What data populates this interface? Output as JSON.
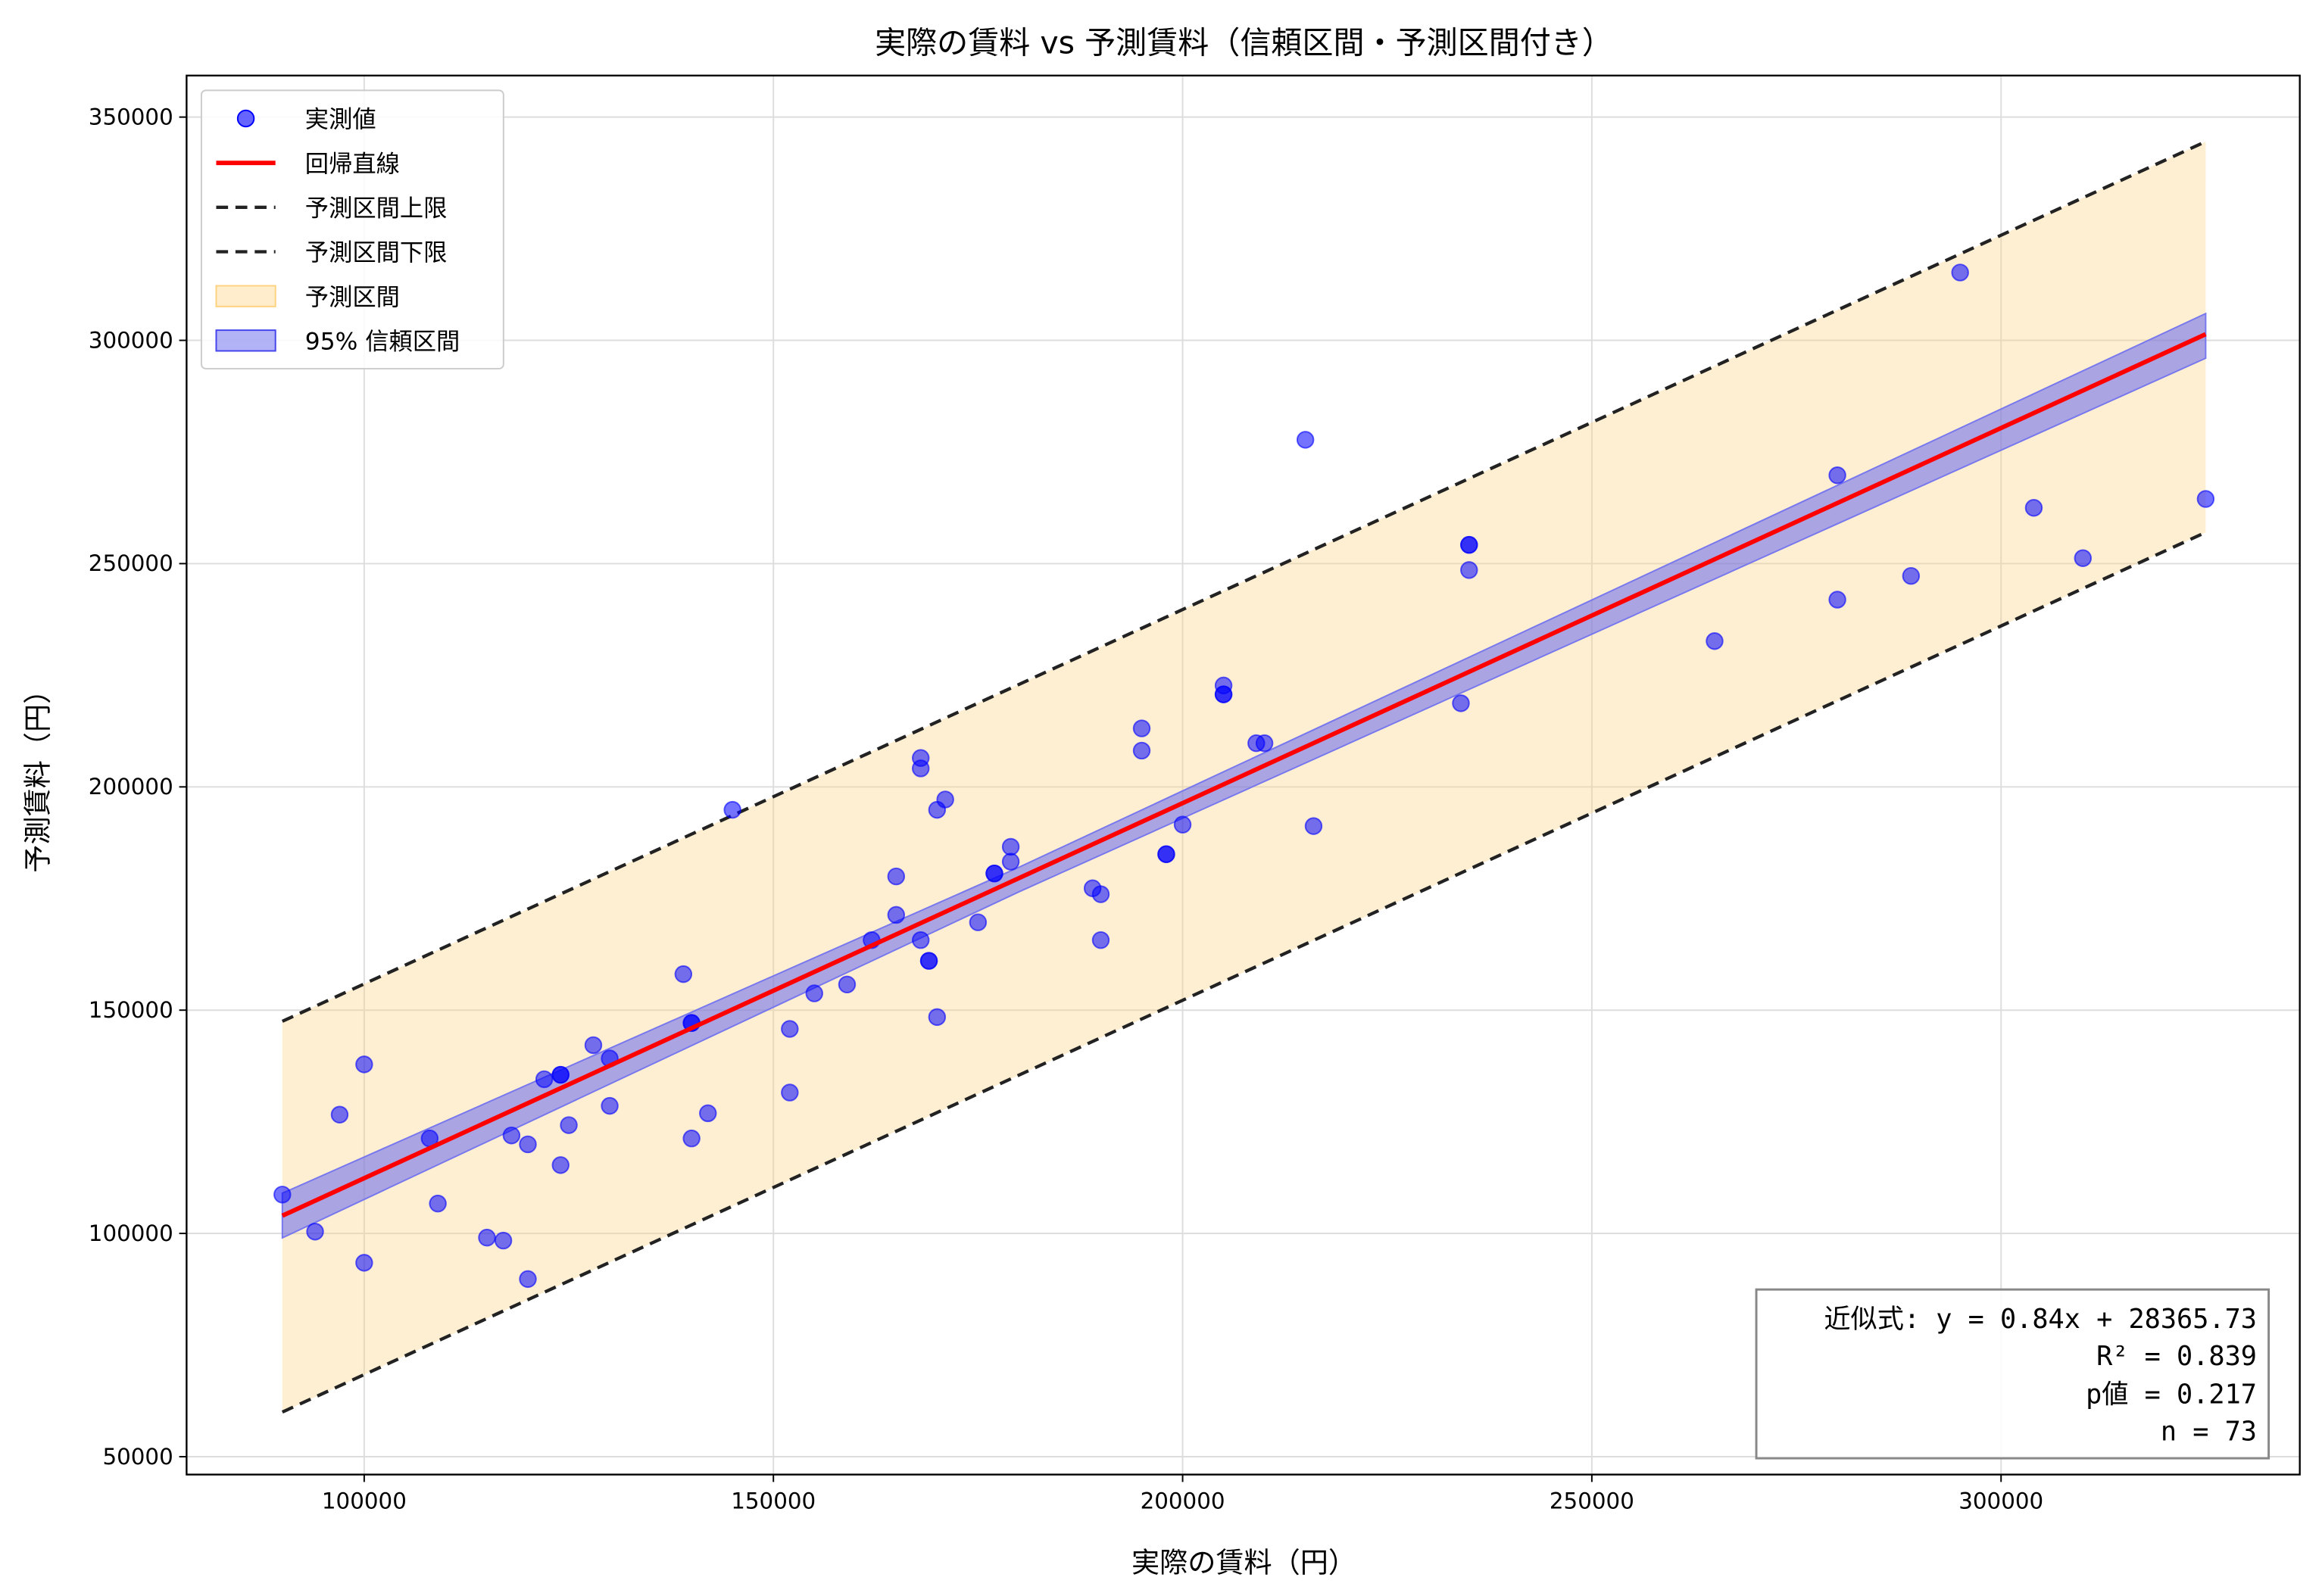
{
  "chart_data": {
    "type": "scatter",
    "title": "実際の賃料 vs 予測賃料（信頼区間・予測区間付き）",
    "xlabel": "実際の賃料（円）",
    "ylabel": "予測賃料（円）",
    "xlim": [
      78300,
      336500
    ],
    "ylim": [
      46000,
      359300
    ],
    "xticks": [
      100000,
      150000,
      200000,
      250000,
      300000
    ],
    "yticks": [
      50000,
      100000,
      150000,
      200000,
      250000,
      300000,
      350000
    ],
    "grid": true,
    "legend_position": "top-left",
    "colors": {
      "points": "#0000ff",
      "regression": "#ff0000",
      "pi_line": "#222222",
      "pi_fill": "#ffd27f",
      "ci_fill": "#6666ee"
    },
    "legend": [
      "実測値",
      "回帰直線",
      "予測区間上限",
      "予測区間下限",
      "予測区間",
      "95% 信頼区間"
    ],
    "points": [
      [
        90000,
        108700
      ],
      [
        94000,
        100400
      ],
      [
        97000,
        126600
      ],
      [
        100000,
        137850
      ],
      [
        100000,
        93430
      ],
      [
        108000,
        121270
      ],
      [
        109000,
        106690
      ],
      [
        115000,
        99060
      ],
      [
        117000,
        98400
      ],
      [
        118000,
        121940
      ],
      [
        120000,
        119950
      ],
      [
        120000,
        89780
      ],
      [
        122000,
        134530
      ],
      [
        124000,
        135530
      ],
      [
        124000,
        135530
      ],
      [
        124000,
        115300
      ],
      [
        125000,
        124250
      ],
      [
        128000,
        142160
      ],
      [
        130000,
        139180
      ],
      [
        130000,
        128570
      ],
      [
        139000,
        158070
      ],
      [
        140000,
        147130
      ],
      [
        140000,
        147130
      ],
      [
        140000,
        121270
      ],
      [
        142000,
        126910
      ],
      [
        145000,
        194860
      ],
      [
        152000,
        145800
      ],
      [
        152000,
        131550
      ],
      [
        155000,
        153760
      ],
      [
        159000,
        155750
      ],
      [
        162000,
        165690
      ],
      [
        165000,
        179950
      ],
      [
        165000,
        171330
      ],
      [
        168000,
        206470
      ],
      [
        168000,
        204140
      ],
      [
        168000,
        165690
      ],
      [
        169000,
        161050
      ],
      [
        169000,
        161050
      ],
      [
        170000,
        194860
      ],
      [
        170000,
        148450
      ],
      [
        171000,
        197180
      ],
      [
        175000,
        169670
      ],
      [
        177000,
        180610
      ],
      [
        177000,
        180610
      ],
      [
        179000,
        186580
      ],
      [
        179000,
        183260
      ],
      [
        189000,
        177290
      ],
      [
        190000,
        175960
      ],
      [
        190000,
        165690
      ],
      [
        195000,
        213100
      ],
      [
        195000,
        208120
      ],
      [
        198000,
        184920
      ],
      [
        198000,
        184920
      ],
      [
        200000,
        191550
      ],
      [
        205000,
        222710
      ],
      [
        205000,
        220720
      ],
      [
        205000,
        220720
      ],
      [
        209000,
        209780
      ],
      [
        210000,
        209780
      ],
      [
        215000,
        277730
      ],
      [
        216000,
        191220
      ],
      [
        234000,
        218730
      ],
      [
        235000,
        254200
      ],
      [
        235000,
        254200
      ],
      [
        235000,
        248560
      ],
      [
        265000,
        232650
      ],
      [
        280000,
        269780
      ],
      [
        280000,
        241930
      ],
      [
        289000,
        247240
      ],
      [
        295000,
        315190
      ],
      [
        304000,
        262490
      ],
      [
        310000,
        251220
      ],
      [
        325000,
        264480
      ]
    ],
    "regression": {
      "slope": 0.84,
      "intercept": 28365.73,
      "x_range": [
        90000,
        325000
      ]
    },
    "prediction_interval": {
      "x": [
        90000,
        325000
      ],
      "lower": [
        60000,
        257000
      ],
      "upper": [
        147500,
        344500
      ]
    },
    "confidence_interval": {
      "x": [
        90000,
        180000,
        325000
      ],
      "lower": [
        99000,
        176500,
        296000
      ],
      "upper": [
        109000,
        182000,
        306000
      ]
    },
    "annotation": {
      "line1": "近似式: y = 0.84x + 28365.73",
      "line2": "R² = 0.839",
      "line3": "p値 = 0.217",
      "line4": "n = 73"
    }
  }
}
